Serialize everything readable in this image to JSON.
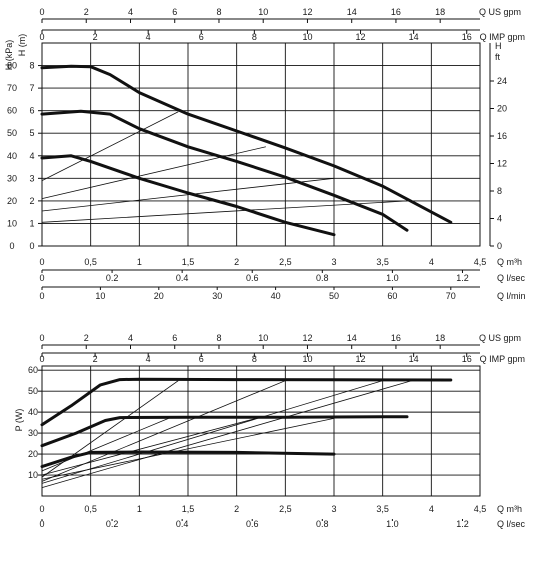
{
  "chart_data": [
    {
      "type": "line",
      "name_hint": "pump head curves",
      "axes": {
        "left_labels": [
          "H (kPa)",
          "H (m)"
        ],
        "right_labels": [
          "H",
          "ft"
        ],
        "top_scales": [
          {
            "unit": "Q US gpm",
            "ticks": [
              "0",
              "2",
              "4",
              "6",
              "8",
              "10",
              "12",
              "14",
              "16",
              "18"
            ],
            "range": [
              0,
              19.8
            ]
          },
          {
            "unit": "Q IMP gpm",
            "ticks": [
              "0",
              "2",
              "4",
              "6",
              "8",
              "10",
              "12",
              "14",
              "16"
            ],
            "range": [
              0,
              16.5
            ]
          }
        ],
        "bottom_scales": [
          {
            "unit": "Q m³h",
            "ticks": [
              "0",
              "0,5",
              "1",
              "1,5",
              "2",
              "2,5",
              "3",
              "3,5",
              "4",
              "4,5"
            ],
            "range": [
              0,
              4.5
            ]
          },
          {
            "unit": "Q l/sec",
            "ticks": [
              "0",
              "0.2",
              "0.4",
              "0.6",
              "0.8",
              "1.0",
              "1.2"
            ],
            "range": [
              0,
              1.25
            ]
          },
          {
            "unit": "Q l/min",
            "ticks": [
              "0",
              "10",
              "20",
              "30",
              "40",
              "50",
              "60",
              "70"
            ],
            "range": [
              0,
              75
            ]
          }
        ],
        "kpa_ticks": [
          "0",
          "10",
          "20",
          "30",
          "40",
          "50",
          "60",
          "70",
          "80"
        ],
        "m_ticks": [
          "0",
          "1",
          "2",
          "3",
          "4",
          "5",
          "6",
          "7",
          "8"
        ],
        "ft_ticks": [
          "0",
          "4",
          "8",
          "12",
          "16",
          "20",
          "24"
        ],
        "ylim_m": [
          0,
          9
        ]
      },
      "x_unit": "m³/h",
      "y_unit": "m",
      "grid": true,
      "series": [
        {
          "values": [
            [
              0,
              7.9
            ],
            [
              0.3,
              7.97
            ],
            [
              0.5,
              7.95
            ],
            [
              0.7,
              7.6
            ],
            [
              1.0,
              6.8
            ],
            [
              1.5,
              5.85
            ],
            [
              2.0,
              5.1
            ],
            [
              2.5,
              4.35
            ],
            [
              3.0,
              3.55
            ],
            [
              3.5,
              2.65
            ],
            [
              4.2,
              1.05
            ]
          ]
        },
        {
          "values": [
            [
              0,
              5.85
            ],
            [
              0.4,
              5.97
            ],
            [
              0.7,
              5.85
            ],
            [
              1.0,
              5.2
            ],
            [
              1.5,
              4.4
            ],
            [
              2.0,
              3.75
            ],
            [
              2.5,
              3.05
            ],
            [
              3.0,
              2.25
            ],
            [
              3.5,
              1.4
            ],
            [
              3.75,
              0.7
            ]
          ]
        },
        {
          "values": [
            [
              0,
              3.9
            ],
            [
              0.3,
              4.0
            ],
            [
              0.5,
              3.75
            ],
            [
              1.0,
              3.0
            ],
            [
              1.5,
              2.35
            ],
            [
              2.0,
              1.75
            ],
            [
              2.5,
              1.05
            ],
            [
              3.0,
              0.5
            ]
          ]
        }
      ],
      "reference_lines": [
        {
          "values": [
            [
              0,
              2.9
            ],
            [
              1.4,
              5.95
            ]
          ]
        },
        {
          "values": [
            [
              0,
              2.1
            ],
            [
              2.3,
              4.4
            ]
          ]
        },
        {
          "values": [
            [
              0,
              1.55
            ],
            [
              3.0,
              3.0
            ]
          ]
        },
        {
          "values": [
            [
              0,
              1.05
            ],
            [
              3.75,
              2.0
            ]
          ]
        }
      ]
    },
    {
      "type": "line",
      "name_hint": "pump power curves",
      "axes": {
        "left_labels": [
          "P (W)"
        ],
        "top_scales": [
          {
            "unit": "Q US gpm",
            "ticks": [
              "0",
              "2",
              "4",
              "6",
              "8",
              "10",
              "12",
              "14",
              "16",
              "18"
            ],
            "range": [
              0,
              19.8
            ]
          },
          {
            "unit": "Q IMP gpm",
            "ticks": [
              "0",
              "2",
              "4",
              "6",
              "8",
              "10",
              "12",
              "14",
              "16"
            ],
            "range": [
              0,
              16.5
            ]
          }
        ],
        "bottom_scales": [
          {
            "unit": "Q m³h",
            "ticks": [
              "0",
              "0,5",
              "1",
              "1,5",
              "2",
              "2,5",
              "3",
              "3,5",
              "4",
              "4,5"
            ],
            "range": [
              0,
              4.5
            ]
          },
          {
            "unit": "Q l/sec",
            "ticks": [
              "0",
              "0.2",
              "0.4",
              "0.6",
              "0.8",
              "1.0",
              "1.2"
            ],
            "range": [
              0,
              1.25
            ]
          }
        ],
        "p_ticks": [
          "10",
          "20",
          "30",
          "40",
          "50",
          "60"
        ],
        "ylim": [
          0,
          62
        ]
      },
      "x_unit": "m³/h",
      "y_unit": "W",
      "grid": true,
      "series": [
        {
          "values": [
            [
              0,
              34
            ],
            [
              0.3,
              43
            ],
            [
              0.6,
              53
            ],
            [
              0.8,
              55.5
            ],
            [
              1.0,
              55.7
            ],
            [
              2.0,
              55.5
            ],
            [
              3.0,
              55.4
            ],
            [
              4.2,
              55.3
            ]
          ]
        },
        {
          "values": [
            [
              0,
              24
            ],
            [
              0.35,
              30
            ],
            [
              0.65,
              36
            ],
            [
              0.8,
              37.4
            ],
            [
              1.5,
              37.6
            ],
            [
              2.5,
              37.6
            ],
            [
              3.75,
              37.8
            ]
          ]
        },
        {
          "values": [
            [
              0,
              14
            ],
            [
              0.3,
              18.5
            ],
            [
              0.5,
              20.8
            ],
            [
              1.0,
              21.0
            ],
            [
              2.0,
              20.8
            ],
            [
              3.0,
              20.0
            ]
          ]
        }
      ],
      "reference_lines": [
        {
          "values": [
            [
              0,
              9
            ],
            [
              1.4,
              55
            ]
          ]
        },
        {
          "values": [
            [
              0,
              7
            ],
            [
              2.5,
              55
            ]
          ]
        },
        {
          "values": [
            [
              0,
              6
            ],
            [
              3.5,
              55
            ]
          ]
        },
        {
          "values": [
            [
              0,
              4
            ],
            [
              3.8,
              55
            ]
          ]
        },
        {
          "values": [
            [
              0,
              12
            ],
            [
              1.3,
              37
            ]
          ]
        },
        {
          "values": [
            [
              0,
              10
            ],
            [
              2.2,
              37
            ]
          ]
        },
        {
          "values": [
            [
              0,
              8
            ],
            [
              3.0,
              37
            ]
          ]
        }
      ]
    }
  ]
}
